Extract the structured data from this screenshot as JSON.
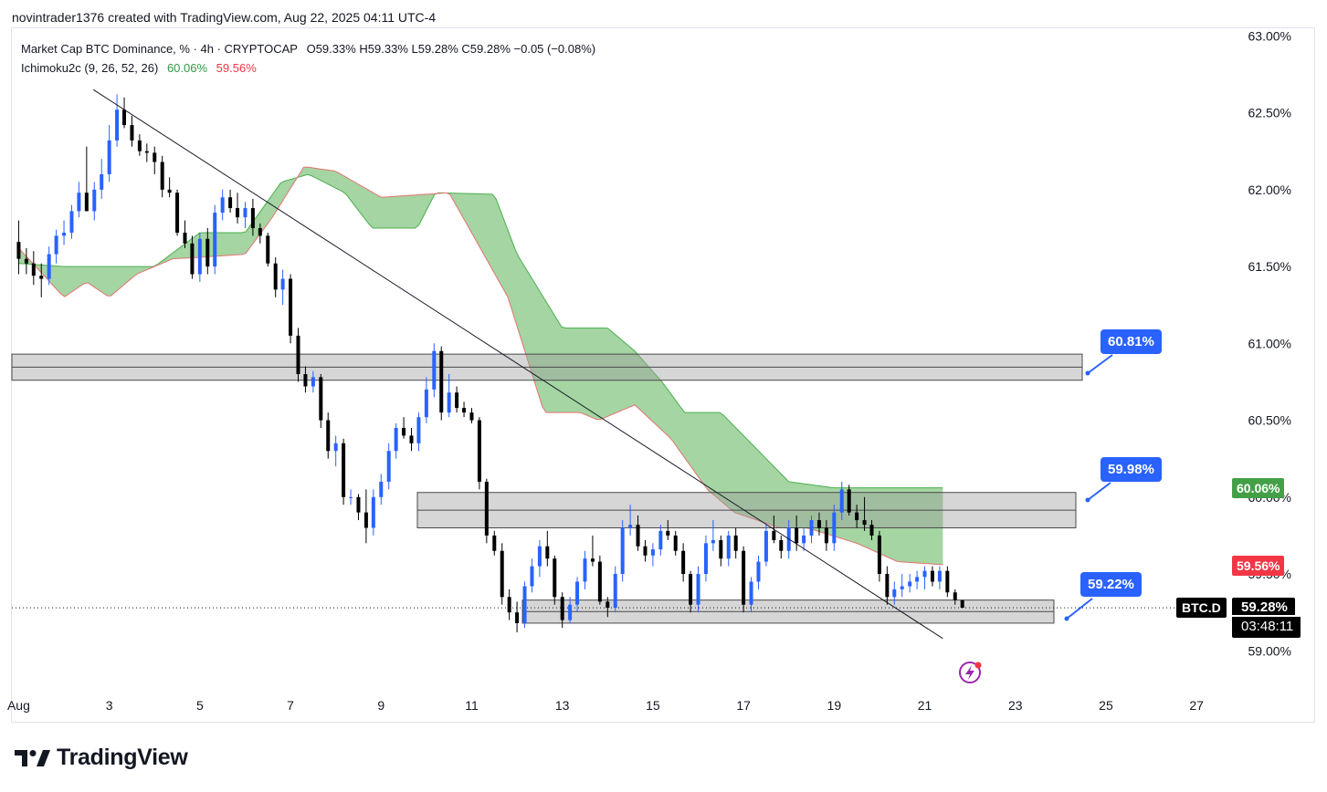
{
  "header": {
    "caption": "novintrader1376 created with TradingView.com, Aug 22, 2025 04:11 UTC-4"
  },
  "legend": {
    "symbol": "Market Cap BTC Dominance, % · 4h · CRYPTOCAP",
    "ohlc": "O59.33% H59.33% L59.28% C59.28% −0.05 (−0.08%)",
    "indicator": "Ichimoku2c (9, 26, 52, 26)",
    "ind_v1": "60.06%",
    "ind_v2": "59.56%"
  },
  "callouts": [
    "60.81%",
    "59.98%",
    "59.22%"
  ],
  "price_axis_badges": {
    "span_a": "60.06%",
    "span_b": "59.56%",
    "symbol": "BTC.D",
    "last": "59.28%",
    "countdown": "03:48:11"
  },
  "brand": "TradingView",
  "colors": {
    "up": "#2962ff",
    "down": "#000000",
    "cloud": "#9fd39d",
    "cloud_edge_a": "#4caf50",
    "cloud_edge_b": "#e57373",
    "callout": "#2962ff"
  },
  "chart_data": {
    "type": "candlestick",
    "interval": "4h",
    "y_axis_labels": [
      "63.00%",
      "62.50%",
      "62.00%",
      "61.50%",
      "61.00%",
      "60.50%",
      "60.00%",
      "59.50%",
      "59.00%"
    ],
    "ylim": [
      58.96,
      63.02
    ],
    "x_axis_labels": [
      "Aug",
      "3",
      "5",
      "7",
      "9",
      "11",
      "13",
      "15",
      "17",
      "19",
      "21",
      "23",
      "25",
      "27"
    ],
    "x_range_days": [
      0.85,
      27.4
    ],
    "current_price": 59.28,
    "candles": [
      {
        "d": 1.0,
        "o": 61.66,
        "h": 61.8,
        "l": 61.45,
        "c": 61.55
      },
      {
        "d": 1.17,
        "o": 61.55,
        "h": 61.62,
        "l": 61.45,
        "c": 61.52
      },
      {
        "d": 1.33,
        "o": 61.52,
        "h": 61.6,
        "l": 61.38,
        "c": 61.44
      },
      {
        "d": 1.5,
        "o": 61.44,
        "h": 61.52,
        "l": 61.3,
        "c": 61.42
      },
      {
        "d": 1.67,
        "o": 61.42,
        "h": 61.63,
        "l": 61.38,
        "c": 61.58
      },
      {
        "d": 1.83,
        "o": 61.58,
        "h": 61.74,
        "l": 61.52,
        "c": 61.7
      },
      {
        "d": 2.0,
        "o": 61.7,
        "h": 61.8,
        "l": 61.64,
        "c": 61.72
      },
      {
        "d": 2.17,
        "o": 61.72,
        "h": 61.9,
        "l": 61.68,
        "c": 61.86
      },
      {
        "d": 2.33,
        "o": 61.86,
        "h": 62.05,
        "l": 61.82,
        "c": 61.98
      },
      {
        "d": 2.5,
        "o": 61.98,
        "h": 62.28,
        "l": 61.9,
        "c": 61.86
      },
      {
        "d": 2.67,
        "o": 61.86,
        "h": 62.05,
        "l": 61.8,
        "c": 62.0
      },
      {
        "d": 2.83,
        "o": 62.0,
        "h": 62.2,
        "l": 61.94,
        "c": 62.1
      },
      {
        "d": 3.0,
        "o": 62.1,
        "h": 62.42,
        "l": 62.05,
        "c": 62.32
      },
      {
        "d": 3.17,
        "o": 62.32,
        "h": 62.62,
        "l": 62.28,
        "c": 62.52
      },
      {
        "d": 3.33,
        "o": 62.52,
        "h": 62.6,
        "l": 62.4,
        "c": 62.42
      },
      {
        "d": 3.5,
        "o": 62.42,
        "h": 62.48,
        "l": 62.28,
        "c": 62.32
      },
      {
        "d": 3.67,
        "o": 62.32,
        "h": 62.36,
        "l": 62.22,
        "c": 62.25
      },
      {
        "d": 3.83,
        "o": 62.25,
        "h": 62.3,
        "l": 62.18,
        "c": 62.24
      },
      {
        "d": 4.0,
        "o": 62.24,
        "h": 62.28,
        "l": 62.1,
        "c": 62.18
      },
      {
        "d": 4.17,
        "o": 62.18,
        "h": 62.22,
        "l": 61.95,
        "c": 62.0
      },
      {
        "d": 4.33,
        "o": 62.0,
        "h": 62.08,
        "l": 61.95,
        "c": 61.98
      },
      {
        "d": 4.5,
        "o": 61.98,
        "h": 62.0,
        "l": 61.7,
        "c": 61.72
      },
      {
        "d": 4.67,
        "o": 61.72,
        "h": 61.8,
        "l": 61.62,
        "c": 61.65
      },
      {
        "d": 4.83,
        "o": 61.65,
        "h": 61.7,
        "l": 61.42,
        "c": 61.45
      },
      {
        "d": 5.0,
        "o": 61.45,
        "h": 61.72,
        "l": 61.4,
        "c": 61.68
      },
      {
        "d": 5.17,
        "o": 61.68,
        "h": 61.75,
        "l": 61.45,
        "c": 61.5
      },
      {
        "d": 5.33,
        "o": 61.5,
        "h": 61.9,
        "l": 61.45,
        "c": 61.85
      },
      {
        "d": 5.5,
        "o": 61.85,
        "h": 62.0,
        "l": 61.8,
        "c": 61.95
      },
      {
        "d": 5.67,
        "o": 61.95,
        "h": 62.0,
        "l": 61.85,
        "c": 61.88
      },
      {
        "d": 5.83,
        "o": 61.88,
        "h": 61.98,
        "l": 61.78,
        "c": 61.82
      },
      {
        "d": 6.0,
        "o": 61.82,
        "h": 61.92,
        "l": 61.75,
        "c": 61.88
      },
      {
        "d": 6.17,
        "o": 61.88,
        "h": 61.94,
        "l": 61.7,
        "c": 61.75
      },
      {
        "d": 6.33,
        "o": 61.75,
        "h": 61.78,
        "l": 61.65,
        "c": 61.7
      },
      {
        "d": 6.5,
        "o": 61.7,
        "h": 61.72,
        "l": 61.5,
        "c": 61.52
      },
      {
        "d": 6.67,
        "o": 61.52,
        "h": 61.56,
        "l": 61.3,
        "c": 61.35
      },
      {
        "d": 6.83,
        "o": 61.35,
        "h": 61.48,
        "l": 61.25,
        "c": 61.42
      },
      {
        "d": 7.0,
        "o": 61.42,
        "h": 61.45,
        "l": 61.0,
        "c": 61.05
      },
      {
        "d": 7.17,
        "o": 61.05,
        "h": 61.1,
        "l": 60.75,
        "c": 60.8
      },
      {
        "d": 7.33,
        "o": 60.8,
        "h": 60.85,
        "l": 60.68,
        "c": 60.72
      },
      {
        "d": 7.5,
        "o": 60.72,
        "h": 60.82,
        "l": 60.68,
        "c": 60.78
      },
      {
        "d": 7.67,
        "o": 60.78,
        "h": 60.8,
        "l": 60.45,
        "c": 60.5
      },
      {
        "d": 7.83,
        "o": 60.5,
        "h": 60.55,
        "l": 60.25,
        "c": 60.3
      },
      {
        "d": 8.0,
        "o": 60.3,
        "h": 60.4,
        "l": 60.2,
        "c": 60.35
      },
      {
        "d": 8.17,
        "o": 60.35,
        "h": 60.38,
        "l": 59.95,
        "c": 60.0
      },
      {
        "d": 8.33,
        "o": 60.0,
        "h": 60.05,
        "l": 59.95,
        "c": 60.0
      },
      {
        "d": 8.5,
        "o": 60.0,
        "h": 60.02,
        "l": 59.85,
        "c": 59.9
      },
      {
        "d": 8.67,
        "o": 59.9,
        "h": 60.05,
        "l": 59.7,
        "c": 59.8
      },
      {
        "d": 8.83,
        "o": 59.8,
        "h": 60.05,
        "l": 59.75,
        "c": 60.0
      },
      {
        "d": 9.0,
        "o": 60.0,
        "h": 60.15,
        "l": 59.95,
        "c": 60.1
      },
      {
        "d": 9.17,
        "o": 60.1,
        "h": 60.35,
        "l": 60.05,
        "c": 60.3
      },
      {
        "d": 9.33,
        "o": 60.3,
        "h": 60.48,
        "l": 60.25,
        "c": 60.45
      },
      {
        "d": 9.5,
        "o": 60.45,
        "h": 60.52,
        "l": 60.38,
        "c": 60.4
      },
      {
        "d": 9.67,
        "o": 60.4,
        "h": 60.45,
        "l": 60.3,
        "c": 60.35
      },
      {
        "d": 9.83,
        "o": 60.35,
        "h": 60.55,
        "l": 60.3,
        "c": 60.52
      },
      {
        "d": 10.0,
        "o": 60.52,
        "h": 60.78,
        "l": 60.48,
        "c": 60.7
      },
      {
        "d": 10.17,
        "o": 60.7,
        "h": 61.0,
        "l": 60.65,
        "c": 60.95
      },
      {
        "d": 10.33,
        "o": 60.95,
        "h": 60.98,
        "l": 60.5,
        "c": 60.55
      },
      {
        "d": 10.5,
        "o": 60.55,
        "h": 60.8,
        "l": 60.52,
        "c": 60.68
      },
      {
        "d": 10.67,
        "o": 60.68,
        "h": 60.72,
        "l": 60.55,
        "c": 60.58
      },
      {
        "d": 10.83,
        "o": 60.58,
        "h": 60.62,
        "l": 60.52,
        "c": 60.55
      },
      {
        "d": 11.0,
        "o": 60.55,
        "h": 60.58,
        "l": 60.48,
        "c": 60.5
      },
      {
        "d": 11.17,
        "o": 60.5,
        "h": 60.52,
        "l": 60.05,
        "c": 60.1
      },
      {
        "d": 11.33,
        "o": 60.1,
        "h": 60.12,
        "l": 59.7,
        "c": 59.75
      },
      {
        "d": 11.5,
        "o": 59.75,
        "h": 59.78,
        "l": 59.62,
        "c": 59.65
      },
      {
        "d": 11.67,
        "o": 59.65,
        "h": 59.7,
        "l": 59.3,
        "c": 59.35
      },
      {
        "d": 11.83,
        "o": 59.35,
        "h": 59.4,
        "l": 59.2,
        "c": 59.25
      },
      {
        "d": 12.0,
        "o": 59.25,
        "h": 59.32,
        "l": 59.12,
        "c": 59.18
      },
      {
        "d": 12.17,
        "o": 59.18,
        "h": 59.45,
        "l": 59.15,
        "c": 59.42
      },
      {
        "d": 12.33,
        "o": 59.42,
        "h": 59.6,
        "l": 59.38,
        "c": 59.55
      },
      {
        "d": 12.5,
        "o": 59.55,
        "h": 59.72,
        "l": 59.48,
        "c": 59.68
      },
      {
        "d": 12.67,
        "o": 59.68,
        "h": 59.78,
        "l": 59.55,
        "c": 59.6
      },
      {
        "d": 12.83,
        "o": 59.6,
        "h": 59.62,
        "l": 59.3,
        "c": 59.35
      },
      {
        "d": 13.0,
        "o": 59.35,
        "h": 59.38,
        "l": 59.15,
        "c": 59.2
      },
      {
        "d": 13.17,
        "o": 59.2,
        "h": 59.35,
        "l": 59.18,
        "c": 59.3
      },
      {
        "d": 13.33,
        "o": 59.3,
        "h": 59.48,
        "l": 59.25,
        "c": 59.45
      },
      {
        "d": 13.5,
        "o": 59.45,
        "h": 59.65,
        "l": 59.4,
        "c": 59.6
      },
      {
        "d": 13.67,
        "o": 59.6,
        "h": 59.75,
        "l": 59.55,
        "c": 59.58
      },
      {
        "d": 13.83,
        "o": 59.58,
        "h": 59.62,
        "l": 59.3,
        "c": 59.32
      },
      {
        "d": 14.0,
        "o": 59.32,
        "h": 59.35,
        "l": 59.22,
        "c": 59.28
      },
      {
        "d": 14.17,
        "o": 59.28,
        "h": 59.55,
        "l": 59.25,
        "c": 59.5
      },
      {
        "d": 14.33,
        "o": 59.5,
        "h": 59.85,
        "l": 59.45,
        "c": 59.8
      },
      {
        "d": 14.5,
        "o": 59.8,
        "h": 59.95,
        "l": 59.75,
        "c": 59.82
      },
      {
        "d": 14.67,
        "o": 59.82,
        "h": 59.88,
        "l": 59.65,
        "c": 59.68
      },
      {
        "d": 14.83,
        "o": 59.68,
        "h": 59.72,
        "l": 59.58,
        "c": 59.62
      },
      {
        "d": 15.0,
        "o": 59.62,
        "h": 59.7,
        "l": 59.55,
        "c": 59.66
      },
      {
        "d": 15.17,
        "o": 59.66,
        "h": 59.82,
        "l": 59.62,
        "c": 59.78
      },
      {
        "d": 15.33,
        "o": 59.78,
        "h": 59.85,
        "l": 59.72,
        "c": 59.75
      },
      {
        "d": 15.5,
        "o": 59.75,
        "h": 59.78,
        "l": 59.62,
        "c": 59.65
      },
      {
        "d": 15.67,
        "o": 59.65,
        "h": 59.7,
        "l": 59.45,
        "c": 59.5
      },
      {
        "d": 15.83,
        "o": 59.5,
        "h": 59.52,
        "l": 59.25,
        "c": 59.3
      },
      {
        "d": 16.0,
        "o": 59.3,
        "h": 59.55,
        "l": 59.25,
        "c": 59.5
      },
      {
        "d": 16.17,
        "o": 59.5,
        "h": 59.75,
        "l": 59.45,
        "c": 59.7
      },
      {
        "d": 16.33,
        "o": 59.7,
        "h": 59.85,
        "l": 59.65,
        "c": 59.72
      },
      {
        "d": 16.5,
        "o": 59.72,
        "h": 59.75,
        "l": 59.55,
        "c": 59.6
      },
      {
        "d": 16.67,
        "o": 59.6,
        "h": 59.78,
        "l": 59.55,
        "c": 59.75
      },
      {
        "d": 16.83,
        "o": 59.75,
        "h": 59.8,
        "l": 59.6,
        "c": 59.65
      },
      {
        "d": 17.0,
        "o": 59.65,
        "h": 59.68,
        "l": 59.25,
        "c": 59.3
      },
      {
        "d": 17.17,
        "o": 59.3,
        "h": 59.48,
        "l": 59.25,
        "c": 59.45
      },
      {
        "d": 17.33,
        "o": 59.45,
        "h": 59.62,
        "l": 59.4,
        "c": 59.58
      },
      {
        "d": 17.5,
        "o": 59.58,
        "h": 59.82,
        "l": 59.55,
        "c": 59.78
      },
      {
        "d": 17.67,
        "o": 59.78,
        "h": 59.88,
        "l": 59.7,
        "c": 59.72
      },
      {
        "d": 17.83,
        "o": 59.72,
        "h": 59.75,
        "l": 59.6,
        "c": 59.65
      },
      {
        "d": 18.0,
        "o": 59.65,
        "h": 59.85,
        "l": 59.6,
        "c": 59.8
      },
      {
        "d": 18.17,
        "o": 59.8,
        "h": 59.88,
        "l": 59.65,
        "c": 59.7
      },
      {
        "d": 18.33,
        "o": 59.7,
        "h": 59.8,
        "l": 59.65,
        "c": 59.75
      },
      {
        "d": 18.5,
        "o": 59.75,
        "h": 59.88,
        "l": 59.7,
        "c": 59.85
      },
      {
        "d": 18.67,
        "o": 59.85,
        "h": 59.9,
        "l": 59.75,
        "c": 59.8
      },
      {
        "d": 18.83,
        "o": 59.8,
        "h": 59.85,
        "l": 59.65,
        "c": 59.7
      },
      {
        "d": 19.0,
        "o": 59.7,
        "h": 59.95,
        "l": 59.65,
        "c": 59.9
      },
      {
        "d": 19.17,
        "o": 59.9,
        "h": 60.1,
        "l": 59.85,
        "c": 60.05
      },
      {
        "d": 19.33,
        "o": 60.05,
        "h": 60.08,
        "l": 59.88,
        "c": 59.9
      },
      {
        "d": 19.5,
        "o": 59.9,
        "h": 59.95,
        "l": 59.8,
        "c": 59.85
      },
      {
        "d": 19.67,
        "o": 59.85,
        "h": 60.0,
        "l": 59.78,
        "c": 59.82
      },
      {
        "d": 19.83,
        "o": 59.82,
        "h": 59.85,
        "l": 59.72,
        "c": 59.75
      },
      {
        "d": 20.0,
        "o": 59.75,
        "h": 59.78,
        "l": 59.45,
        "c": 59.5
      },
      {
        "d": 20.17,
        "o": 59.5,
        "h": 59.55,
        "l": 59.3,
        "c": 59.35
      },
      {
        "d": 20.33,
        "o": 59.35,
        "h": 59.45,
        "l": 59.3,
        "c": 59.4
      },
      {
        "d": 20.5,
        "o": 59.4,
        "h": 59.5,
        "l": 59.35,
        "c": 59.42
      },
      {
        "d": 20.67,
        "o": 59.42,
        "h": 59.5,
        "l": 59.38,
        "c": 59.45
      },
      {
        "d": 20.83,
        "o": 59.45,
        "h": 59.52,
        "l": 59.4,
        "c": 59.48
      },
      {
        "d": 21.0,
        "o": 59.48,
        "h": 59.55,
        "l": 59.4,
        "c": 59.52
      },
      {
        "d": 21.17,
        "o": 59.52,
        "h": 59.55,
        "l": 59.42,
        "c": 59.45
      },
      {
        "d": 21.33,
        "o": 59.45,
        "h": 59.55,
        "l": 59.4,
        "c": 59.52
      },
      {
        "d": 21.5,
        "o": 59.52,
        "h": 59.55,
        "l": 59.35,
        "c": 59.38
      },
      {
        "d": 21.67,
        "o": 59.38,
        "h": 59.4,
        "l": 59.3,
        "c": 59.33
      },
      {
        "d": 21.83,
        "o": 59.33,
        "h": 59.33,
        "l": 59.28,
        "c": 59.28
      }
    ],
    "ichimoku_span_a": [
      [
        1,
        61.52
      ],
      [
        2,
        61.5
      ],
      [
        3,
        61.5
      ],
      [
        4,
        61.5
      ],
      [
        5,
        61.72
      ],
      [
        6,
        61.72
      ],
      [
        6.8,
        62.05
      ],
      [
        7.4,
        62.1
      ],
      [
        8.2,
        61.98
      ],
      [
        8.8,
        61.75
      ],
      [
        9.8,
        61.75
      ],
      [
        10.2,
        61.98
      ],
      [
        11.5,
        61.97
      ],
      [
        12,
        61.58
      ],
      [
        13,
        61.1
      ],
      [
        14,
        61.1
      ],
      [
        14.6,
        60.95
      ],
      [
        15.2,
        60.75
      ],
      [
        15.7,
        60.55
      ],
      [
        16.5,
        60.55
      ],
      [
        17,
        60.4
      ],
      [
        18,
        60.1
      ],
      [
        19,
        60.06
      ],
      [
        21.4,
        60.06
      ]
    ],
    "ichimoku_span_b": [
      [
        1,
        61.62
      ],
      [
        2,
        61.3
      ],
      [
        2.5,
        61.4
      ],
      [
        3,
        61.3
      ],
      [
        3.6,
        61.45
      ],
      [
        4.4,
        61.55
      ],
      [
        5,
        61.56
      ],
      [
        6,
        61.58
      ],
      [
        6.6,
        61.82
      ],
      [
        7.3,
        62.15
      ],
      [
        8,
        62.12
      ],
      [
        9,
        61.95
      ],
      [
        10.5,
        61.98
      ],
      [
        11.8,
        61.3
      ],
      [
        12.6,
        60.55
      ],
      [
        13.4,
        60.55
      ],
      [
        13.8,
        60.5
      ],
      [
        14.6,
        60.6
      ],
      [
        15.4,
        60.38
      ],
      [
        16.2,
        60.05
      ],
      [
        16.8,
        59.9
      ],
      [
        17.8,
        59.8
      ],
      [
        18.4,
        59.8
      ],
      [
        19.5,
        59.7
      ],
      [
        20.4,
        59.58
      ],
      [
        21.4,
        59.56
      ]
    ],
    "zones": [
      [
        60.76,
        60.93
      ],
      [
        59.8,
        60.03
      ],
      [
        59.18,
        59.33
      ]
    ],
    "trendline": [
      [
        2.65,
        62.65
      ],
      [
        21.4,
        59.08
      ]
    ]
  }
}
